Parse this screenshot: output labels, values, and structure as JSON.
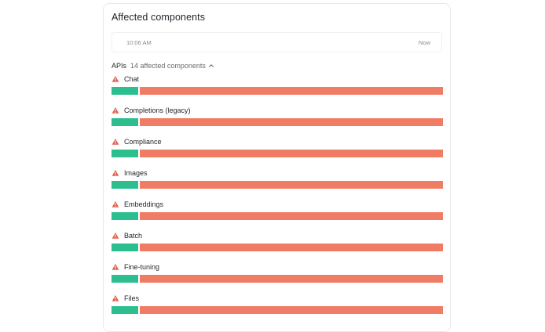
{
  "panel": {
    "title": "Affected components",
    "timeline": {
      "start": "10:06 AM",
      "end": "Now"
    }
  },
  "group": {
    "name": "APIs",
    "count_label": "14 affected components",
    "expanded": true
  },
  "colors": {
    "operational": "#2dbe8f",
    "outage": "#f17c66",
    "warning_icon": "#e2604a"
  },
  "components": [
    {
      "name": "Chat",
      "status_icon": "warning-icon",
      "operational_fraction": 0.08
    },
    {
      "name": "Completions (legacy)",
      "status_icon": "warning-icon",
      "operational_fraction": 0.08
    },
    {
      "name": "Compliance",
      "status_icon": "warning-icon",
      "operational_fraction": 0.08
    },
    {
      "name": "Images",
      "status_icon": "warning-icon",
      "operational_fraction": 0.08
    },
    {
      "name": "Embeddings",
      "status_icon": "warning-icon",
      "operational_fraction": 0.08
    },
    {
      "name": "Batch",
      "status_icon": "warning-icon",
      "operational_fraction": 0.08
    },
    {
      "name": "Fine-tuning",
      "status_icon": "warning-icon",
      "operational_fraction": 0.08
    },
    {
      "name": "Files",
      "status_icon": "warning-icon",
      "operational_fraction": 0.08
    }
  ]
}
